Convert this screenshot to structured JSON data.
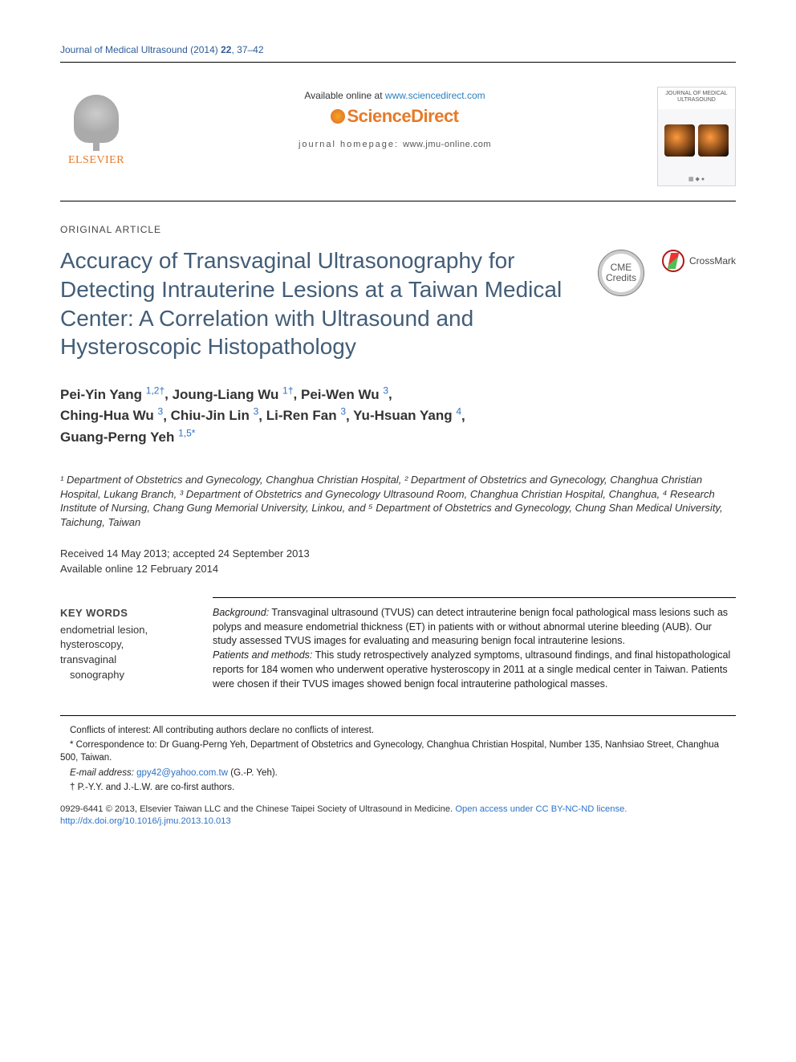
{
  "running_head": {
    "journal_link": "Journal of Medical Ultrasound (2014)",
    "volume": "22",
    "pages": "37–42"
  },
  "topbox": {
    "publisher_name": "ELSEVIER",
    "available_prefix": "Available online at ",
    "available_url": "www.sciencedirect.com",
    "sd_brand": "ScienceDirect",
    "jh_label": "journal homepage: ",
    "jh_url": "www.jmu-online.com",
    "cover_title": "JOURNAL OF MEDICAL ULTRASOUND"
  },
  "article": {
    "section_label": "ORIGINAL ARTICLE",
    "title": "Accuracy of Transvaginal Ultrasonography for Detecting Intrauterine Lesions at a Taiwan Medical Center: A Correlation with Ultrasound and Hysteroscopic Histopathology",
    "cme_line1": "CME",
    "cme_line2": "Credits",
    "crossmark": "CrossMark"
  },
  "authors": {
    "a1": {
      "name": "Pei-Yin Yang",
      "sup": "1,2†"
    },
    "a2": {
      "name": "Joung-Liang Wu",
      "sup": "1†"
    },
    "a3": {
      "name": "Pei-Wen Wu",
      "sup": "3"
    },
    "a4": {
      "name": "Ching-Hua Wu",
      "sup": "3"
    },
    "a5": {
      "name": "Chiu-Jin Lin",
      "sup": "3"
    },
    "a6": {
      "name": "Li-Ren Fan",
      "sup": "3"
    },
    "a7": {
      "name": "Yu-Hsuan Yang",
      "sup": "4"
    },
    "a8": {
      "name": "Guang-Perng Yeh",
      "sup": "1,5*"
    }
  },
  "affiliations": "¹ Department of Obstetrics and Gynecology, Changhua Christian Hospital, ² Department of Obstetrics and Gynecology, Changhua Christian Hospital, Lukang Branch,  ³ Department of Obstetrics and Gynecology Ultrasound Room, Changhua Christian Hospital, Changhua, ⁴ Research Institute of Nursing, Chang Gung Memorial University, Linkou, and  ⁵ Department of Obstetrics and Gynecology, Chung Shan Medical University, Taichung, Taiwan",
  "dates": {
    "line1": "Received 14 May 2013; accepted 24 September 2013",
    "line2": "Available online 12 February 2014"
  },
  "keywords": {
    "head": "KEY WORDS",
    "k1": "endometrial lesion,",
    "k2": "hysteroscopy,",
    "k3": "transvaginal",
    "k4": "sonography"
  },
  "abstract": {
    "bg_label": "Background:",
    "bg_text": " Transvaginal ultrasound (TVUS) can detect intrauterine benign focal pathological mass lesions such as polyps and measure endometrial thickness (ET) in patients with or without abnormal uterine bleeding (AUB). Our study assessed TVUS images for evaluating and measuring benign focal intrauterine lesions.",
    "pm_label": "Patients and methods:",
    "pm_text": " This study retrospectively analyzed symptoms, ultrasound findings, and final histopathological reports for 184 women who underwent operative hysteroscopy in 2011 at a single medical center in Taiwan. Patients were chosen if their TVUS images showed benign focal intrauterine pathological masses."
  },
  "footnotes": {
    "coi": "Conflicts of interest: All contributing authors declare no conflicts of interest.",
    "corr": "* Correspondence to: Dr Guang-Perng Yeh, Department of Obstetrics and Gynecology, Changhua Christian Hospital, Number 135, Nanhsiao Street, Changhua 500, Taiwan.",
    "email_label": "E-mail address:",
    "email": "gpy42@yahoo.com.tw",
    "email_who": " (G.-P. Yeh).",
    "cofirst": "† P.-Y.Y. and J.-L.W. are co-first authors."
  },
  "copyright": {
    "issn": "0929-6441 ",
    "text": "© 2013, Elsevier Taiwan LLC and the Chinese Taipei Society of Ultrasound in Medicine. ",
    "oa_label": "Open access under ",
    "oa_link": "CC BY-NC-ND license.",
    "doi": "http://dx.doi.org/10.1016/j.jmu.2013.10.013"
  },
  "colors": {
    "title": "#425d77",
    "link": "#2d72c7",
    "orange": "#e67a29"
  }
}
